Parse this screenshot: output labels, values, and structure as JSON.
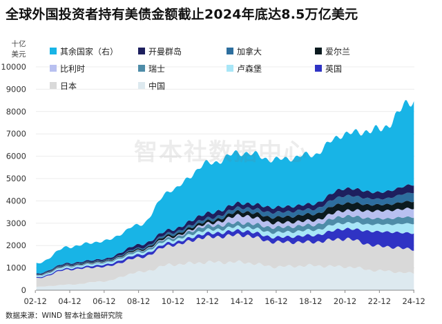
{
  "title": "全球外国投资者持有美债金额截止2024年底达8.5万亿美元",
  "unit": {
    "line1": "十亿",
    "line2": "美元"
  },
  "source": "数据来源：WIND 智本社金融研究院",
  "watermark": "智本社数据中心",
  "chart_data": {
    "type": "area",
    "stacked": true,
    "title": "全球外国投资者持有美债金额截止2024年底达8.5万亿美元",
    "ylabel": "十亿美元",
    "ylim": [
      0,
      10000
    ],
    "yticks": [
      0,
      1000,
      2000,
      3000,
      4000,
      5000,
      6000,
      7000,
      8000,
      9000,
      10000
    ],
    "x_range": [
      2002.95,
      2024.95
    ],
    "x_ticks": [
      {
        "x": 2002.917,
        "label": "02-12"
      },
      {
        "x": 2004.917,
        "label": "04-12"
      },
      {
        "x": 2006.917,
        "label": "06-12"
      },
      {
        "x": 2008.917,
        "label": "08-12"
      },
      {
        "x": 2010.917,
        "label": "10-12"
      },
      {
        "x": 2012.917,
        "label": "12-12"
      },
      {
        "x": 2014.917,
        "label": "14-12"
      },
      {
        "x": 2016.917,
        "label": "16-12"
      },
      {
        "x": 2018.917,
        "label": "18-12"
      },
      {
        "x": 2020.917,
        "label": "20-12"
      },
      {
        "x": 2022.917,
        "label": "22-12"
      },
      {
        "x": 2024.917,
        "label": "24-12"
      }
    ],
    "x": [
      2002.92,
      2004.92,
      2006.92,
      2008.92,
      2010.92,
      2012.92,
      2014.92,
      2016.92,
      2018.92,
      2020.92,
      2022.92,
      2024.92
    ],
    "series": [
      {
        "name": "中国",
        "color": "#dde9ef",
        "values": [
          150,
          250,
          400,
          800,
          1150,
          1250,
          1250,
          1050,
          1100,
          1050,
          870,
          760
        ]
      },
      {
        "name": "日本",
        "color": "#d9d9d9",
        "values": [
          380,
          680,
          650,
          650,
          880,
          1120,
          1220,
          1100,
          1050,
          1250,
          1100,
          1080
        ]
      },
      {
        "name": "英国",
        "color": "#2f33c4",
        "values": [
          40,
          60,
          90,
          130,
          120,
          170,
          200,
          220,
          300,
          450,
          650,
          720
        ]
      },
      {
        "name": "卢森堡",
        "color": "#a8e6f7",
        "values": [
          50,
          70,
          80,
          100,
          120,
          150,
          170,
          210,
          230,
          270,
          320,
          420
        ]
      },
      {
        "name": "瑞士",
        "color": "#4e8ca8",
        "values": [
          20,
          30,
          40,
          70,
          100,
          180,
          180,
          230,
          230,
          300,
          260,
          300
        ]
      },
      {
        "name": "比利时",
        "color": "#b8c0f0",
        "values": [
          20,
          20,
          20,
          20,
          40,
          100,
          330,
          200,
          200,
          250,
          350,
          380
        ]
      },
      {
        "name": "爱尔兰",
        "color": "#0b1a1f",
        "values": [
          20,
          30,
          30,
          50,
          90,
          110,
          180,
          250,
          280,
          330,
          270,
          320
        ]
      },
      {
        "name": "加拿大",
        "color": "#2d6e9e",
        "values": [
          20,
          30,
          30,
          50,
          100,
          120,
          170,
          220,
          220,
          330,
          260,
          390
        ]
      },
      {
        "name": "开曼群岛",
        "color": "#1d1f5e",
        "values": [
          30,
          50,
          60,
          150,
          140,
          230,
          200,
          230,
          230,
          330,
          300,
          350
        ]
      },
      {
        "name": "其余国家（右）",
        "color": "#18b4e6",
        "values": [
          450,
          740,
          800,
          880,
          1800,
          2230,
          2270,
          2130,
          2210,
          2440,
          2810,
          3780
        ]
      }
    ]
  },
  "legend": [
    {
      "label": "其余国家（右）",
      "color": "#18b4e6"
    },
    {
      "label": "开曼群岛",
      "color": "#1d1f5e"
    },
    {
      "label": "加拿大",
      "color": "#2d6e9e"
    },
    {
      "label": "爱尔兰",
      "color": "#0b1a1f"
    },
    {
      "label": "比利时",
      "color": "#b8c0f0"
    },
    {
      "label": "瑞士",
      "color": "#4e8ca8"
    },
    {
      "label": "卢森堡",
      "color": "#a8e6f7"
    },
    {
      "label": "英国",
      "color": "#2f33c4"
    },
    {
      "label": "日本",
      "color": "#d9d9d9"
    },
    {
      "label": "中国",
      "color": "#dde9ef"
    }
  ]
}
